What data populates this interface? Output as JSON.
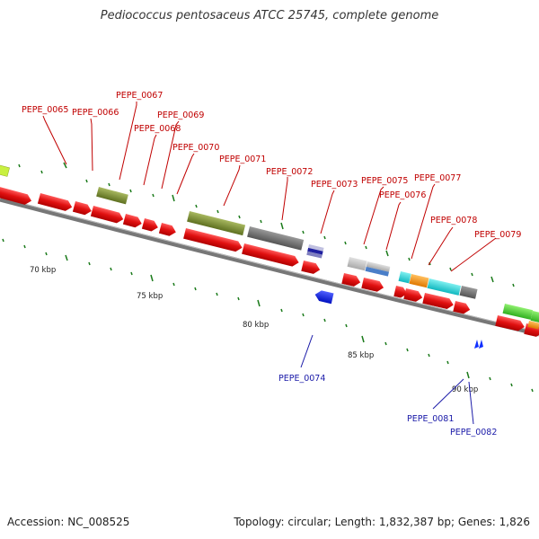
{
  "title": "Pediococcus pentosaceus ATCC 25745, complete genome",
  "accession": "Accession: NC_008525",
  "summary": "Topology: circular; Length: 1,832,387 bp; Genes: 1,826",
  "ticks": [
    "70 kbp",
    "75 kbp",
    "80 kbp",
    "85 kbp",
    "90 kbp"
  ],
  "genes_top": [
    "PEPE_0065",
    "PEPE_0066",
    "PEPE_0067",
    "PEPE_0068",
    "PEPE_0069",
    "PEPE_0070",
    "PEPE_0071",
    "PEPE_0072",
    "PEPE_0073",
    "PEPE_0075",
    "PEPE_0076",
    "PEPE_0077",
    "PEPE_0078",
    "PEPE_0079"
  ],
  "genes_bottom": [
    "PEPE_0074",
    "PEPE_0081",
    "PEPE_0082"
  ],
  "colors": {
    "cds": "#e01010",
    "top_label": "#c00000",
    "bottom_label": "#1a1aa8",
    "backbone": "#888888",
    "tick": "#1a7a1a"
  }
}
